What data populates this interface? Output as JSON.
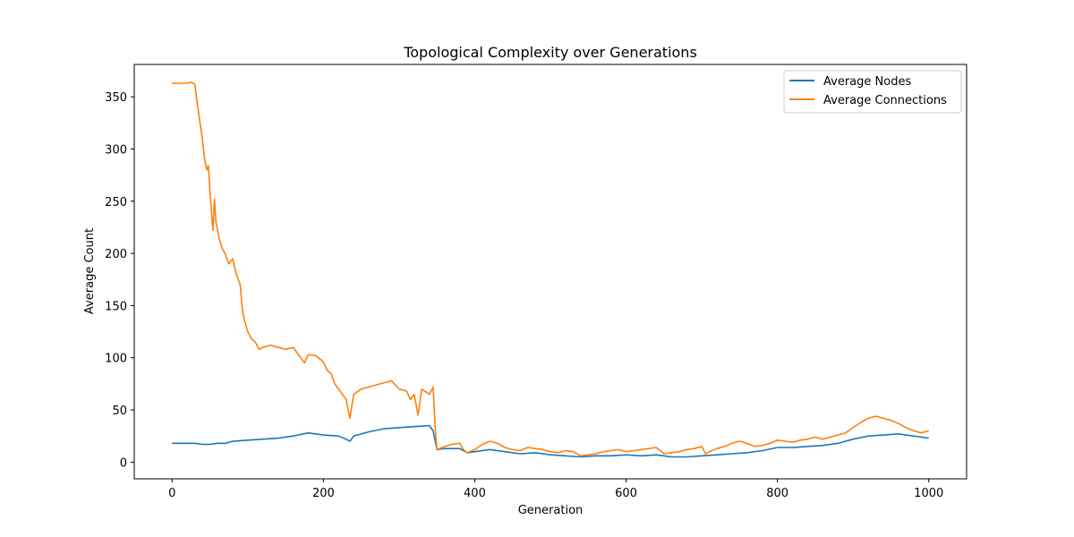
{
  "chart_data": {
    "type": "line",
    "title": "Topological Complexity over Generations",
    "xlabel": "Generation",
    "ylabel": "Average Count",
    "xlim": [
      -50,
      1050
    ],
    "ylim": [
      -16,
      381
    ],
    "xticks": [
      0,
      200,
      400,
      600,
      800,
      1000
    ],
    "yticks": [
      0,
      50,
      100,
      150,
      200,
      250,
      300,
      350
    ],
    "grid": false,
    "legend_position": "top-right",
    "series": [
      {
        "name": "Average Nodes",
        "color": "#1f77b4",
        "points": [
          [
            0,
            18
          ],
          [
            20,
            18
          ],
          [
            30,
            18
          ],
          [
            40,
            17
          ],
          [
            50,
            17
          ],
          [
            60,
            18
          ],
          [
            70,
            18
          ],
          [
            80,
            20
          ],
          [
            100,
            21
          ],
          [
            120,
            22
          ],
          [
            140,
            23
          ],
          [
            160,
            25
          ],
          [
            180,
            28
          ],
          [
            200,
            26
          ],
          [
            220,
            25
          ],
          [
            230,
            22
          ],
          [
            235,
            20
          ],
          [
            240,
            25
          ],
          [
            260,
            29
          ],
          [
            280,
            32
          ],
          [
            300,
            33
          ],
          [
            320,
            34
          ],
          [
            340,
            35
          ],
          [
            345,
            30
          ],
          [
            350,
            12
          ],
          [
            360,
            13
          ],
          [
            380,
            13
          ],
          [
            390,
            9
          ],
          [
            400,
            10
          ],
          [
            420,
            12
          ],
          [
            440,
            10
          ],
          [
            460,
            8
          ],
          [
            480,
            9
          ],
          [
            500,
            7
          ],
          [
            520,
            6
          ],
          [
            540,
            5
          ],
          [
            560,
            6
          ],
          [
            580,
            6
          ],
          [
            600,
            7
          ],
          [
            620,
            6
          ],
          [
            640,
            7
          ],
          [
            660,
            5
          ],
          [
            680,
            5
          ],
          [
            700,
            6
          ],
          [
            720,
            7
          ],
          [
            740,
            8
          ],
          [
            760,
            9
          ],
          [
            780,
            11
          ],
          [
            800,
            14
          ],
          [
            820,
            14
          ],
          [
            840,
            15
          ],
          [
            860,
            16
          ],
          [
            880,
            18
          ],
          [
            900,
            22
          ],
          [
            920,
            25
          ],
          [
            940,
            26
          ],
          [
            960,
            27
          ],
          [
            980,
            25
          ],
          [
            1000,
            23
          ]
        ]
      },
      {
        "name": "Average Connections",
        "color": "#ff7f0e",
        "points": [
          [
            0,
            363
          ],
          [
            10,
            363
          ],
          [
            20,
            363
          ],
          [
            25,
            364
          ],
          [
            30,
            362
          ],
          [
            33,
            345
          ],
          [
            36,
            330
          ],
          [
            40,
            310
          ],
          [
            43,
            290
          ],
          [
            46,
            280
          ],
          [
            48,
            284
          ],
          [
            50,
            260
          ],
          [
            52,
            240
          ],
          [
            54,
            222
          ],
          [
            56,
            252
          ],
          [
            58,
            230
          ],
          [
            62,
            215
          ],
          [
            66,
            205
          ],
          [
            70,
            200
          ],
          [
            75,
            190
          ],
          [
            80,
            195
          ],
          [
            85,
            180
          ],
          [
            90,
            170
          ],
          [
            93,
            145
          ],
          [
            96,
            135
          ],
          [
            100,
            125
          ],
          [
            105,
            118
          ],
          [
            110,
            115
          ],
          [
            115,
            108
          ],
          [
            120,
            110
          ],
          [
            130,
            112
          ],
          [
            140,
            110
          ],
          [
            150,
            108
          ],
          [
            160,
            110
          ],
          [
            170,
            100
          ],
          [
            175,
            95
          ],
          [
            180,
            103
          ],
          [
            190,
            102
          ],
          [
            200,
            96
          ],
          [
            205,
            88
          ],
          [
            210,
            85
          ],
          [
            215,
            75
          ],
          [
            220,
            70
          ],
          [
            225,
            65
          ],
          [
            230,
            60
          ],
          [
            235,
            42
          ],
          [
            240,
            65
          ],
          [
            250,
            70
          ],
          [
            260,
            72
          ],
          [
            270,
            74
          ],
          [
            280,
            76
          ],
          [
            290,
            78
          ],
          [
            300,
            70
          ],
          [
            310,
            68
          ],
          [
            315,
            60
          ],
          [
            320,
            65
          ],
          [
            325,
            45
          ],
          [
            330,
            70
          ],
          [
            340,
            65
          ],
          [
            345,
            72
          ],
          [
            348,
            30
          ],
          [
            350,
            12
          ],
          [
            360,
            15
          ],
          [
            370,
            17
          ],
          [
            380,
            18
          ],
          [
            385,
            12
          ],
          [
            390,
            9
          ],
          [
            400,
            12
          ],
          [
            410,
            17
          ],
          [
            420,
            20
          ],
          [
            430,
            18
          ],
          [
            440,
            14
          ],
          [
            450,
            12
          ],
          [
            460,
            11
          ],
          [
            470,
            14
          ],
          [
            480,
            13
          ],
          [
            490,
            12
          ],
          [
            500,
            10
          ],
          [
            510,
            9
          ],
          [
            520,
            11
          ],
          [
            530,
            10
          ],
          [
            540,
            6
          ],
          [
            550,
            7
          ],
          [
            560,
            8
          ],
          [
            570,
            10
          ],
          [
            580,
            11
          ],
          [
            590,
            12
          ],
          [
            600,
            10
          ],
          [
            610,
            11
          ],
          [
            620,
            12
          ],
          [
            630,
            13
          ],
          [
            640,
            14
          ],
          [
            650,
            8
          ],
          [
            660,
            9
          ],
          [
            670,
            10
          ],
          [
            680,
            12
          ],
          [
            690,
            13
          ],
          [
            700,
            15
          ],
          [
            705,
            8
          ],
          [
            710,
            10
          ],
          [
            720,
            13
          ],
          [
            730,
            15
          ],
          [
            740,
            18
          ],
          [
            750,
            20
          ],
          [
            760,
            18
          ],
          [
            770,
            15
          ],
          [
            780,
            16
          ],
          [
            790,
            18
          ],
          [
            800,
            21
          ],
          [
            810,
            20
          ],
          [
            820,
            19
          ],
          [
            830,
            21
          ],
          [
            840,
            22
          ],
          [
            850,
            24
          ],
          [
            860,
            22
          ],
          [
            870,
            24
          ],
          [
            880,
            26
          ],
          [
            890,
            28
          ],
          [
            900,
            33
          ],
          [
            910,
            38
          ],
          [
            920,
            42
          ],
          [
            930,
            44
          ],
          [
            940,
            42
          ],
          [
            950,
            40
          ],
          [
            960,
            37
          ],
          [
            970,
            33
          ],
          [
            980,
            30
          ],
          [
            990,
            28
          ],
          [
            1000,
            30
          ]
        ]
      }
    ]
  }
}
